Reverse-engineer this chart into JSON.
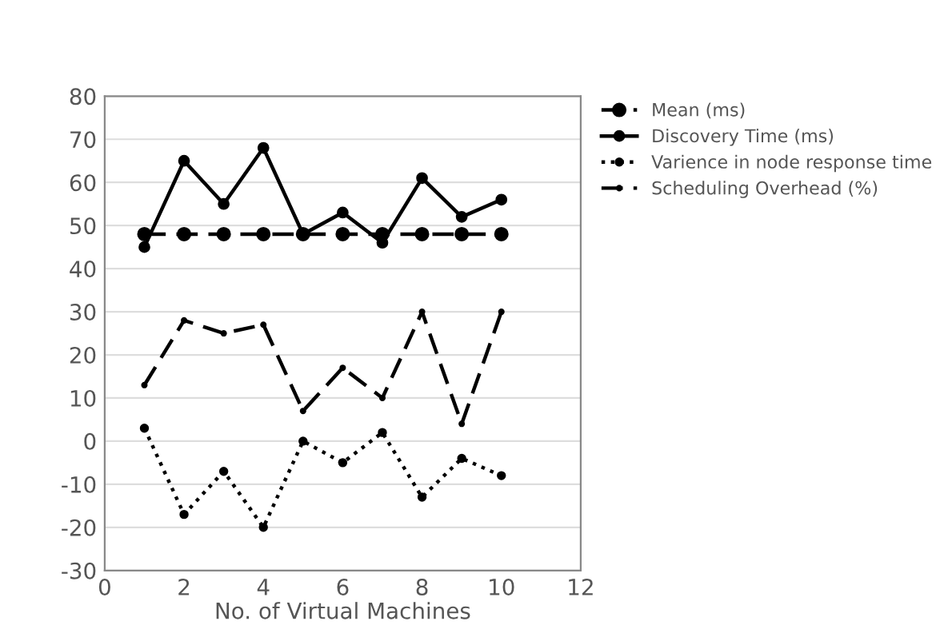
{
  "chart_data": {
    "type": "line",
    "xlabel": "No. of Virtual Machines",
    "x": [
      1,
      2,
      3,
      4,
      5,
      6,
      7,
      8,
      9,
      10
    ],
    "series": [
      {
        "name": "Mean (ms)",
        "color": "#000000",
        "line_style": "dashed",
        "values": [
          48,
          48,
          48,
          48,
          48,
          48,
          48,
          48,
          48,
          48
        ]
      },
      {
        "name": "Discovery Time (ms)",
        "color": "#000000",
        "line_style": "solid",
        "values": [
          45,
          65,
          55,
          68,
          48,
          53,
          46,
          61,
          52,
          56
        ]
      },
      {
        "name": "Varience in node response time",
        "color": "#000000",
        "line_style": "dotted",
        "values": [
          3,
          -17,
          -7,
          -20,
          0,
          -5,
          2,
          -13,
          -4,
          -8
        ]
      },
      {
        "name": "Scheduling Overhead (%)",
        "color": "#000000",
        "line_style": "dashed",
        "values": [
          13,
          28,
          25,
          27,
          7,
          17,
          10,
          30,
          4,
          30
        ]
      }
    ],
    "xlim": [
      0,
      12
    ],
    "xticks": [
      0,
      2,
      4,
      6,
      8,
      10,
      12
    ],
    "ylim": [
      -30,
      80
    ],
    "yticks": [
      -30,
      -20,
      -10,
      0,
      10,
      20,
      30,
      40,
      50,
      60,
      70,
      80
    ],
    "grid": "y",
    "legend": "top right",
    "marker": "circle"
  }
}
